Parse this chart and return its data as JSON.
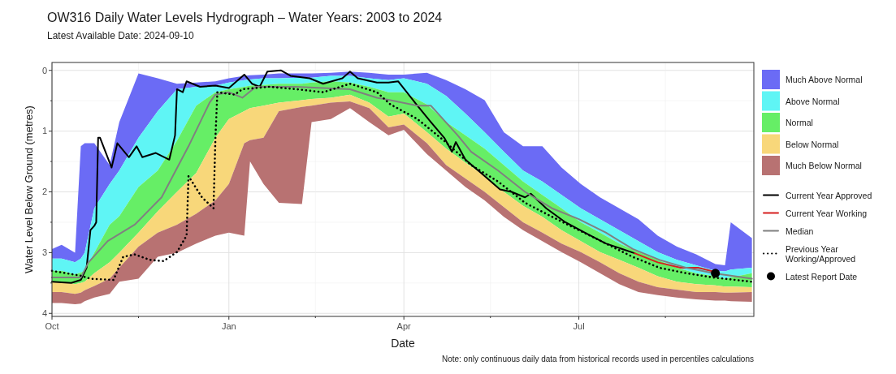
{
  "chart_data": {
    "type": "area",
    "title": "OW316 Daily Water Levels Hydrograph – Water Years: 2003 to 2024",
    "subtitle": "Latest Available Date: 2024-09-10",
    "xlabel": "Date",
    "ylabel": "Water Level Below Ground (metres)",
    "annotations": [
      "Note: only continuous daily data from historical records used in percentiles calculations"
    ],
    "x": [
      "2023-10-01",
      "2023-10-06",
      "2023-10-13",
      "2023-10-16",
      "2023-10-18",
      "2023-10-23",
      "2023-10-31",
      "2023-11-05",
      "2023-11-15",
      "2023-11-25",
      "2023-12-05",
      "2023-12-15",
      "2023-12-25",
      "2024-01-01",
      "2024-01-09",
      "2024-01-12",
      "2024-01-19",
      "2024-01-27",
      "2024-02-08",
      "2024-02-13",
      "2024-02-23",
      "2024-03-04",
      "2024-03-14",
      "2024-03-24",
      "2024-04-01",
      "2024-04-13",
      "2024-04-23",
      "2024-05-03",
      "2024-05-13",
      "2024-05-23",
      "2024-06-02",
      "2024-06-12",
      "2024-06-22",
      "2024-07-02",
      "2024-07-12",
      "2024-07-22",
      "2024-08-01",
      "2024-08-11",
      "2024-08-21",
      "2024-08-31",
      "2024-09-10",
      "2024-09-15",
      "2024-09-18",
      "2024-09-29"
    ],
    "xlim": [
      "2023-10-01",
      "2024-09-30"
    ],
    "xticks": [
      {
        "value": "2023-10-01",
        "label": "Oct"
      },
      {
        "value": "2023-11-15",
        "label": null
      },
      {
        "value": "2024-01-01",
        "label": "Jan"
      },
      {
        "value": "2024-02-15",
        "label": null
      },
      {
        "value": "2024-04-01",
        "label": "Apr"
      },
      {
        "value": "2024-05-16",
        "label": null
      },
      {
        "value": "2024-07-01",
        "label": "Jul"
      },
      {
        "value": "2024-08-15",
        "label": null
      }
    ],
    "ylim": [
      4.05,
      -0.13
    ],
    "yticks": [
      0,
      {
        "value": 0.5,
        "label": null
      },
      1,
      {
        "value": 1.5,
        "label": null
      },
      2,
      {
        "value": 2.5,
        "label": null
      },
      3,
      {
        "value": 3.5,
        "label": null
      },
      4
    ],
    "grid": true,
    "legend": "right",
    "series": [
      {
        "name": "Much Above Normal",
        "color": "#6b6bf5",
        "values": [
          null,
          null,
          null,
          null,
          null,
          null,
          null,
          null,
          null,
          null,
          null,
          null,
          null,
          null,
          null,
          null,
          null,
          null,
          null,
          null,
          null,
          null,
          null,
          null,
          null,
          null,
          null,
          null,
          null,
          null,
          null,
          null,
          null,
          null,
          null,
          null,
          null,
          null,
          null,
          null,
          null,
          null,
          null,
          null
        ],
        "lower": [
          2.94,
          2.87,
          3.0,
          1.25,
          1.2,
          1.2,
          1.56,
          0.85,
          0.05,
          0.13,
          0.22,
          0.2,
          0.18,
          0.13,
          0.09,
          0.08,
          0.07,
          0.05,
          0.05,
          0.05,
          0.04,
          0.02,
          0.04,
          0.07,
          0.07,
          0.04,
          0.16,
          0.31,
          0.49,
          1.02,
          1.25,
          1.25,
          1.6,
          1.87,
          2.09,
          2.27,
          2.45,
          2.72,
          2.9,
          3.03,
          3.19,
          3.21,
          2.5,
          2.76
        ],
        "upper": [
          3.1,
          3.1,
          3.16,
          3.1,
          3.0,
          2.27,
          1.87,
          1.65,
          1.11,
          0.67,
          0.31,
          0.27,
          0.25,
          0.2,
          0.16,
          0.15,
          0.13,
          0.13,
          0.12,
          0.12,
          0.09,
          0.09,
          0.13,
          0.16,
          0.13,
          0.22,
          0.42,
          0.71,
          1.02,
          1.34,
          1.65,
          1.83,
          2.05,
          2.27,
          2.45,
          2.63,
          2.81,
          2.99,
          3.12,
          3.21,
          3.3,
          3.31,
          3.28,
          3.25
        ]
      },
      {
        "name": "Above Normal",
        "color": "#5ff5f5",
        "values": [
          null,
          null,
          null,
          null,
          null,
          null,
          null,
          null,
          null,
          null,
          null,
          null,
          null,
          null,
          null,
          null,
          null,
          null,
          null,
          null,
          null,
          null,
          null,
          null,
          null,
          null,
          null,
          null,
          null,
          null,
          null,
          null,
          null,
          null,
          null,
          null,
          null,
          null,
          null,
          null,
          null,
          null,
          null,
          null
        ],
        "lower": [
          3.1,
          3.1,
          3.16,
          3.1,
          3.0,
          2.27,
          1.87,
          1.65,
          1.11,
          0.67,
          0.31,
          0.27,
          0.25,
          0.2,
          0.16,
          0.15,
          0.13,
          0.13,
          0.12,
          0.12,
          0.09,
          0.09,
          0.13,
          0.16,
          0.13,
          0.22,
          0.42,
          0.71,
          1.02,
          1.34,
          1.65,
          1.83,
          2.05,
          2.27,
          2.45,
          2.63,
          2.81,
          2.99,
          3.12,
          3.21,
          3.3,
          3.31,
          3.28,
          3.25
        ],
        "upper": [
          3.3,
          3.3,
          3.36,
          3.33,
          3.3,
          3.0,
          2.54,
          2.4,
          1.92,
          1.65,
          1.16,
          0.58,
          0.36,
          0.31,
          0.27,
          0.25,
          0.24,
          0.22,
          0.22,
          0.2,
          0.18,
          0.2,
          0.27,
          0.36,
          0.36,
          0.56,
          0.85,
          1.07,
          1.29,
          1.56,
          1.83,
          2.05,
          2.27,
          2.5,
          2.67,
          2.85,
          2.99,
          3.12,
          3.25,
          3.34,
          3.39,
          3.43,
          3.41,
          3.34
        ]
      },
      {
        "name": "Normal",
        "color": "#66ee66",
        "values": [
          null,
          null,
          null,
          null,
          null,
          null,
          null,
          null,
          null,
          null,
          null,
          null,
          null,
          null,
          null,
          null,
          null,
          null,
          null,
          null,
          null,
          null,
          null,
          null,
          null,
          null,
          null,
          null,
          null,
          null,
          null,
          null,
          null,
          null,
          null,
          null,
          null,
          null,
          null,
          null,
          null,
          null,
          null,
          null
        ],
        "lower": [
          3.3,
          3.3,
          3.36,
          3.33,
          3.3,
          3.0,
          2.54,
          2.4,
          1.92,
          1.65,
          1.16,
          0.58,
          0.36,
          0.31,
          0.27,
          0.25,
          0.24,
          0.22,
          0.22,
          0.2,
          0.18,
          0.2,
          0.27,
          0.36,
          0.36,
          0.56,
          0.85,
          1.07,
          1.29,
          1.56,
          1.83,
          2.05,
          2.27,
          2.5,
          2.67,
          2.85,
          2.99,
          3.12,
          3.25,
          3.34,
          3.39,
          3.43,
          3.41,
          3.34
        ],
        "upper": [
          3.48,
          3.48,
          3.52,
          3.5,
          3.48,
          3.34,
          3.16,
          3.0,
          2.67,
          2.32,
          2.0,
          1.69,
          1.11,
          0.8,
          0.67,
          0.62,
          0.58,
          0.53,
          0.49,
          0.47,
          0.45,
          0.4,
          0.53,
          0.76,
          0.71,
          1.02,
          1.29,
          1.52,
          1.74,
          2.0,
          2.23,
          2.41,
          2.63,
          2.81,
          2.99,
          3.12,
          3.25,
          3.39,
          3.48,
          3.52,
          3.54,
          3.56,
          3.56,
          3.57
        ]
      },
      {
        "name": "Below Normal",
        "color": "#f8d77a",
        "values": [
          null,
          null,
          null,
          null,
          null,
          null,
          null,
          null,
          null,
          null,
          null,
          null,
          null,
          null,
          null,
          null,
          null,
          null,
          null,
          null,
          null,
          null,
          null,
          null,
          null,
          null,
          null,
          null,
          null,
          null,
          null,
          null,
          null,
          null,
          null,
          null,
          null,
          null,
          null,
          null,
          null,
          null,
          null,
          null
        ],
        "lower": [
          3.48,
          3.48,
          3.52,
          3.5,
          3.48,
          3.34,
          3.16,
          3.0,
          2.67,
          2.32,
          2.0,
          1.69,
          1.11,
          0.8,
          0.67,
          0.62,
          0.58,
          0.53,
          0.49,
          0.47,
          0.45,
          0.4,
          0.53,
          0.76,
          0.71,
          1.02,
          1.29,
          1.52,
          1.74,
          2.0,
          2.23,
          2.41,
          2.63,
          2.81,
          2.99,
          3.12,
          3.25,
          3.39,
          3.48,
          3.52,
          3.54,
          3.56,
          3.56,
          3.57
        ],
        "upper": [
          3.65,
          3.65,
          3.68,
          3.66,
          3.62,
          3.55,
          3.43,
          3.25,
          2.9,
          2.67,
          2.54,
          2.36,
          2.14,
          1.87,
          1.2,
          1.15,
          1.11,
          0.67,
          0.6,
          0.58,
          0.53,
          0.51,
          0.62,
          0.94,
          0.89,
          1.2,
          1.56,
          1.78,
          2.0,
          2.25,
          2.5,
          2.67,
          2.85,
          2.99,
          3.16,
          3.34,
          3.48,
          3.57,
          3.61,
          3.65,
          3.65,
          3.66,
          3.66,
          3.65
        ]
      },
      {
        "name": "Much Below Normal",
        "color": "#b87272",
        "values": [
          null,
          null,
          null,
          null,
          null,
          null,
          null,
          null,
          null,
          null,
          null,
          null,
          null,
          null,
          null,
          null,
          null,
          null,
          null,
          null,
          null,
          null,
          null,
          null,
          null,
          null,
          null,
          null,
          null,
          null,
          null,
          null,
          null,
          null,
          null,
          null,
          null,
          null,
          null,
          null,
          null,
          null,
          null,
          null
        ],
        "lower": [
          3.65,
          3.65,
          3.68,
          3.66,
          3.62,
          3.55,
          3.43,
          3.25,
          2.9,
          2.67,
          2.54,
          2.36,
          2.14,
          1.87,
          1.2,
          1.15,
          1.11,
          0.67,
          0.6,
          0.58,
          0.53,
          0.51,
          0.62,
          0.94,
          0.89,
          1.2,
          1.56,
          1.78,
          2.0,
          2.25,
          2.5,
          2.67,
          2.85,
          2.99,
          3.16,
          3.34,
          3.48,
          3.57,
          3.61,
          3.65,
          3.65,
          3.66,
          3.66,
          3.65
        ],
        "upper": [
          3.83,
          3.83,
          3.85,
          3.84,
          3.8,
          3.74,
          3.68,
          3.48,
          3.43,
          3.07,
          3.0,
          2.85,
          2.72,
          2.67,
          2.72,
          1.5,
          1.87,
          2.18,
          2.2,
          0.85,
          0.8,
          0.62,
          0.85,
          1.07,
          0.98,
          1.38,
          1.65,
          1.92,
          2.14,
          2.41,
          2.63,
          2.81,
          2.99,
          3.16,
          3.34,
          3.52,
          3.65,
          3.7,
          3.74,
          3.77,
          3.79,
          3.79,
          3.8,
          3.81
        ]
      },
      {
        "name": "Current Year Approved",
        "type": "line",
        "color": "#000000",
        "x": [
          "2023-10-01",
          "2023-10-11",
          "2023-10-16",
          "2023-10-19",
          "2023-10-21",
          "2023-10-23",
          "2023-10-24",
          "2023-10-25",
          "2023-10-26",
          "2023-11-01",
          "2023-11-04",
          "2023-11-10",
          "2023-11-14",
          "2023-11-17",
          "2023-11-24",
          "2023-12-01",
          "2023-12-04",
          "2023-12-05",
          "2023-12-08",
          "2023-12-10",
          "2023-12-17",
          "2023-12-25",
          "2024-01-01",
          "2024-01-09",
          "2024-01-13",
          "2024-01-17",
          "2024-01-21",
          "2024-01-28",
          "2024-02-02",
          "2024-02-12",
          "2024-02-19",
          "2024-02-29",
          "2024-03-04",
          "2024-03-08",
          "2024-03-18",
          "2024-03-24",
          "2024-03-29",
          "2024-04-08",
          "2024-04-15",
          "2024-04-22",
          "2024-04-26",
          "2024-04-28",
          "2024-05-03",
          "2024-05-13",
          "2024-05-21",
          "2024-05-27",
          "2024-06-03",
          "2024-06-06",
          "2024-06-14",
          "2024-06-24",
          "2024-07-04",
          "2024-07-15",
          "2024-07-30"
        ],
        "values": [
          3.48,
          3.5,
          3.45,
          3.25,
          2.63,
          2.56,
          2.5,
          1.11,
          1.11,
          1.6,
          1.2,
          1.43,
          1.25,
          1.43,
          1.36,
          1.47,
          1.07,
          0.31,
          0.36,
          0.18,
          0.27,
          0.25,
          0.29,
          0.07,
          0.22,
          0.27,
          0.02,
          0.0,
          0.09,
          0.13,
          0.22,
          0.13,
          0.02,
          0.13,
          0.2,
          0.2,
          0.18,
          0.58,
          0.85,
          1.11,
          1.34,
          1.18,
          1.47,
          1.74,
          1.96,
          2.0,
          2.09,
          2.03,
          2.27,
          2.5,
          2.67,
          2.85,
          3.01
        ]
      },
      {
        "name": "Current Year Working",
        "type": "line",
        "color": "#d62020",
        "x": [
          "2024-07-30",
          "2024-08-11",
          "2024-08-23",
          "2024-09-01",
          "2024-09-10"
        ],
        "values": [
          3.01,
          3.16,
          3.25,
          3.25,
          3.32
        ]
      },
      {
        "name": "Median",
        "type": "line",
        "color": "#808080",
        "x": [
          "2023-10-01",
          "2023-10-16",
          "2023-10-20",
          "2023-10-30",
          "2023-11-13",
          "2023-11-27",
          "2023-12-11",
          "2023-12-22",
          "2023-12-25",
          "2024-01-01",
          "2024-01-08",
          "2024-01-15",
          "2024-02-05",
          "2024-03-04",
          "2024-03-18",
          "2024-03-25",
          "2024-04-08",
          "2024-04-15",
          "2024-04-29",
          "2024-05-06",
          "2024-05-20",
          "2024-06-03",
          "2024-06-17",
          "2024-07-01",
          "2024-07-15",
          "2024-07-29",
          "2024-08-12",
          "2024-08-26",
          "2024-09-09",
          "2024-09-29"
        ],
        "values": [
          3.41,
          3.41,
          3.16,
          2.81,
          2.54,
          2.09,
          1.25,
          0.53,
          0.4,
          0.36,
          0.45,
          0.27,
          0.27,
          0.31,
          0.45,
          0.49,
          0.58,
          0.58,
          1.07,
          1.34,
          1.65,
          2.0,
          2.27,
          2.45,
          2.67,
          2.94,
          3.12,
          3.25,
          3.34,
          3.43
        ]
      },
      {
        "name": "Previous Year Working/Approved",
        "type": "line",
        "line_style": "dotted",
        "color": "#000000",
        "x": [
          "2023-10-01",
          "2023-10-16",
          "2023-10-21",
          "2023-11-02",
          "2023-11-07",
          "2023-11-13",
          "2023-11-21",
          "2023-11-28",
          "2023-12-05",
          "2023-12-10",
          "2023-12-11",
          "2023-12-18",
          "2023-12-21",
          "2023-12-24",
          "2023-12-25",
          "2023-12-26",
          "2024-01-04",
          "2024-01-08",
          "2024-01-22",
          "2024-02-05",
          "2024-02-19",
          "2024-03-04",
          "2024-03-18",
          "2024-03-25",
          "2024-04-08",
          "2024-04-22",
          "2024-05-06",
          "2024-05-20",
          "2024-06-03",
          "2024-06-17",
          "2024-07-01",
          "2024-07-15",
          "2024-07-29",
          "2024-08-12",
          "2024-08-26",
          "2024-09-09",
          "2024-09-29"
        ],
        "values": [
          3.3,
          3.38,
          3.43,
          3.45,
          3.07,
          3.03,
          3.12,
          3.14,
          2.99,
          2.72,
          1.74,
          2.09,
          2.18,
          2.27,
          1.11,
          0.36,
          0.4,
          0.31,
          0.27,
          0.31,
          0.36,
          0.22,
          0.36,
          0.56,
          0.8,
          1.16,
          1.56,
          1.83,
          2.18,
          2.41,
          2.63,
          2.85,
          3.07,
          3.25,
          3.34,
          3.41,
          3.48
        ]
      },
      {
        "name": "Latest Report Date",
        "type": "scatter",
        "marker": "circle",
        "color": "#000000",
        "x": [
          "2024-09-10"
        ],
        "values": [
          3.34
        ]
      }
    ]
  }
}
